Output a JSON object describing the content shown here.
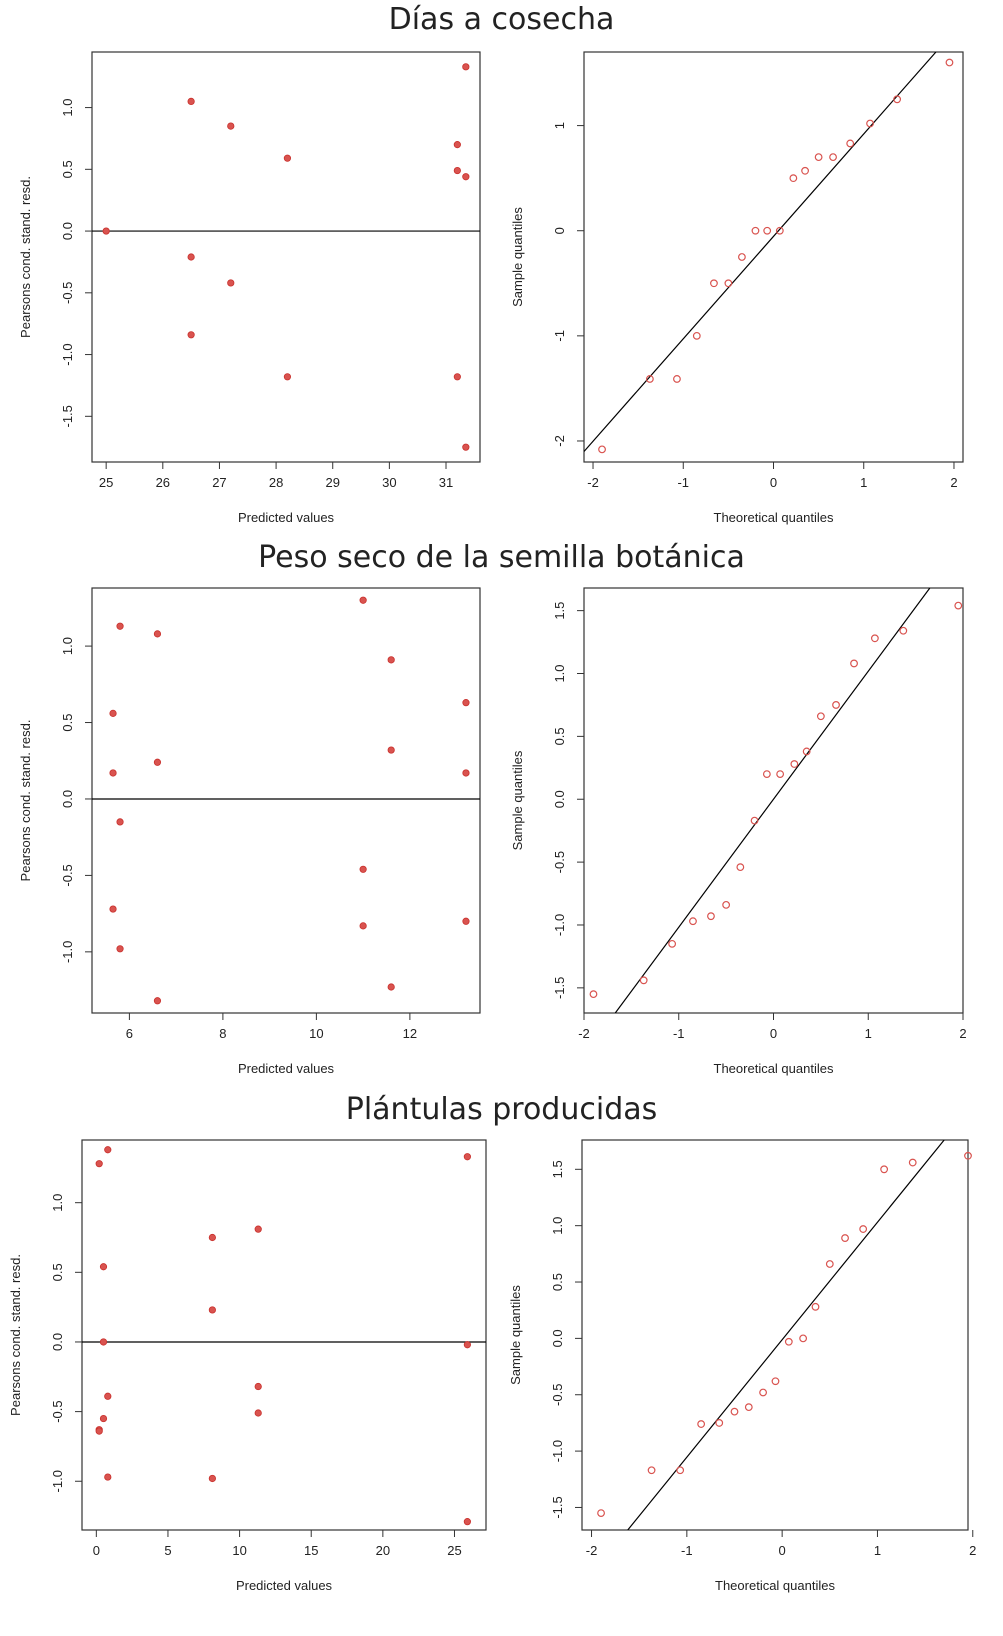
{
  "sections": [
    {
      "title": "Días a cosecha"
    },
    {
      "title": "Peso seco de la semilla botánica"
    },
    {
      "title": "Plántulas producidas"
    }
  ],
  "colors": {
    "point": "#d9534f",
    "line": "#000000",
    "frame": "#333333"
  },
  "chart_data": [
    {
      "type": "scatter",
      "xlabel": "Predicted values",
      "ylabel": "Pearsons cond. stand. resd.",
      "xlim": [
        24.75,
        31.6
      ],
      "ylim": [
        -1.87,
        1.45
      ],
      "xticks": [
        25,
        26,
        27,
        28,
        29,
        30,
        31
      ],
      "yticks": [
        1.0,
        0.5,
        0.0,
        -0.5,
        -1.0,
        -1.5
      ],
      "ytick_labels": [
        "1.0",
        "0.5",
        "0.0",
        "-0.5",
        "-1.0",
        "-1.5"
      ],
      "hline": 0,
      "points": [
        [
          25.0,
          0.0
        ],
        [
          26.5,
          1.05
        ],
        [
          27.2,
          0.85
        ],
        [
          28.2,
          0.59
        ],
        [
          31.2,
          0.7
        ],
        [
          31.35,
          1.33
        ],
        [
          31.2,
          0.49
        ],
        [
          31.35,
          0.44
        ],
        [
          26.5,
          -0.21
        ],
        [
          27.2,
          -0.42
        ],
        [
          26.5,
          -0.84
        ],
        [
          28.2,
          -1.18
        ],
        [
          31.2,
          -1.18
        ],
        [
          31.35,
          -1.75
        ]
      ]
    },
    {
      "type": "scatter",
      "xlabel": "Theoretical quantiles",
      "ylabel": "Sample quantiles",
      "xlim": [
        -2.1,
        2.1
      ],
      "ylim": [
        -2.2,
        1.7
      ],
      "xticks": [
        -2,
        -1,
        0,
        1,
        2
      ],
      "yticks": [
        1,
        0,
        -1,
        -2
      ],
      "ytick_labels": [
        "1",
        "0",
        "-1",
        "-2"
      ],
      "refline": [
        [
          -2.1,
          -2.1
        ],
        [
          1.8,
          1.7
        ]
      ],
      "points": [
        [
          -1.9,
          -2.08
        ],
        [
          -1.37,
          -1.41
        ],
        [
          -1.07,
          -1.41
        ],
        [
          -0.85,
          -1.0
        ],
        [
          -0.66,
          -0.5
        ],
        [
          -0.5,
          -0.5
        ],
        [
          -0.35,
          -0.25
        ],
        [
          -0.2,
          0.0
        ],
        [
          -0.07,
          0.0
        ],
        [
          0.07,
          0.0
        ],
        [
          0.22,
          0.5
        ],
        [
          0.35,
          0.57
        ],
        [
          0.5,
          0.7
        ],
        [
          0.66,
          0.7
        ],
        [
          0.85,
          0.83
        ],
        [
          1.07,
          1.02
        ],
        [
          1.37,
          1.25
        ],
        [
          1.95,
          1.6
        ]
      ]
    },
    {
      "type": "scatter",
      "xlabel": "Predicted values",
      "ylabel": "Pearsons cond. stand. resd.",
      "xlim": [
        5.2,
        13.5
      ],
      "ylim": [
        -1.4,
        1.38
      ],
      "xticks": [
        6,
        8,
        10,
        12
      ],
      "yticks": [
        1.0,
        0.5,
        0.0,
        -0.5,
        -1.0
      ],
      "ytick_labels": [
        "1.0",
        "0.5",
        "0.0",
        "-0.5",
        "-1.0"
      ],
      "hline": 0,
      "points": [
        [
          5.65,
          0.56
        ],
        [
          5.65,
          0.17
        ],
        [
          5.8,
          1.13
        ],
        [
          6.6,
          1.08
        ],
        [
          6.6,
          0.24
        ],
        [
          5.8,
          -0.15
        ],
        [
          5.65,
          -0.72
        ],
        [
          5.8,
          -0.98
        ],
        [
          6.6,
          -1.32
        ],
        [
          11.0,
          1.3
        ],
        [
          11.6,
          0.91
        ],
        [
          11.6,
          0.32
        ],
        [
          13.2,
          0.63
        ],
        [
          13.2,
          0.17
        ],
        [
          11.0,
          -0.46
        ],
        [
          11.0,
          -0.83
        ],
        [
          11.6,
          -1.23
        ],
        [
          13.2,
          -0.8
        ]
      ]
    },
    {
      "type": "scatter",
      "xlabel": "Theoretical quantiles",
      "ylabel": "Sample quantiles",
      "xlim": [
        -2.0,
        2.0
      ],
      "ylim": [
        -1.7,
        1.68
      ],
      "xticks": [
        -2,
        -1,
        0,
        1,
        2
      ],
      "yticks": [
        1.5,
        1.0,
        0.5,
        0.0,
        -0.5,
        -1.0,
        -1.5
      ],
      "ytick_labels": [
        "1.5",
        "1.0",
        "0.5",
        "0.0",
        "-0.5",
        "-1.0",
        "-1.5"
      ],
      "refline": [
        [
          -1.67,
          -1.7
        ],
        [
          1.65,
          1.68
        ]
      ],
      "points": [
        [
          -1.9,
          -1.55
        ],
        [
          -1.37,
          -1.44
        ],
        [
          -1.07,
          -1.15
        ],
        [
          -0.85,
          -0.97
        ],
        [
          -0.66,
          -0.93
        ],
        [
          -0.5,
          -0.84
        ],
        [
          -0.35,
          -0.54
        ],
        [
          -0.2,
          -0.17
        ],
        [
          -0.07,
          0.2
        ],
        [
          0.07,
          0.2
        ],
        [
          0.22,
          0.28
        ],
        [
          0.35,
          0.38
        ],
        [
          0.5,
          0.66
        ],
        [
          0.66,
          0.75
        ],
        [
          0.85,
          1.08
        ],
        [
          1.07,
          1.28
        ],
        [
          1.37,
          1.34
        ],
        [
          1.95,
          1.54
        ]
      ]
    },
    {
      "type": "scatter",
      "xlabel": "Predicted values",
      "ylabel": "Pearsons cond. stand. resd.",
      "xlim": [
        -1.0,
        27.2
      ],
      "ylim": [
        -1.35,
        1.45
      ],
      "xticks": [
        0,
        5,
        10,
        15,
        20,
        25
      ],
      "yticks": [
        1.0,
        0.5,
        0.0,
        -0.5,
        -1.0
      ],
      "ytick_labels": [
        "1.0",
        "0.5",
        "0.0",
        "-0.5",
        "-1.0"
      ],
      "hline": 0,
      "points": [
        [
          0.2,
          1.28
        ],
        [
          0.8,
          1.38
        ],
        [
          0.5,
          0.54
        ],
        [
          0.5,
          0.0
        ],
        [
          0.8,
          -0.39
        ],
        [
          0.5,
          -0.55
        ],
        [
          0.2,
          -0.63
        ],
        [
          0.2,
          -0.64
        ],
        [
          0.8,
          -0.97
        ],
        [
          8.1,
          0.75
        ],
        [
          8.1,
          0.23
        ],
        [
          8.1,
          -0.98
        ],
        [
          11.3,
          0.81
        ],
        [
          11.3,
          -0.32
        ],
        [
          11.3,
          -0.51
        ],
        [
          25.9,
          1.33
        ],
        [
          25.9,
          -0.02
        ],
        [
          25.9,
          -1.29
        ]
      ]
    },
    {
      "type": "scatter",
      "xlabel": "Theoretical quantiles",
      "ylabel": "Sample quantiles",
      "xlim": [
        -2.1,
        1.95
      ],
      "ylim": [
        -1.7,
        1.76
      ],
      "xticks": [
        -2,
        -1,
        0,
        1,
        2
      ],
      "yticks": [
        1.5,
        1.0,
        0.5,
        0.0,
        -0.5,
        -1.0,
        -1.5
      ],
      "ytick_labels": [
        "1.5",
        "1.0",
        "0.5",
        "0.0",
        "-0.5",
        "-1.0",
        "-1.5"
      ],
      "refline": [
        [
          -1.62,
          -1.7
        ],
        [
          1.7,
          1.76
        ]
      ],
      "points": [
        [
          -1.9,
          -1.55
        ],
        [
          -1.37,
          -1.17
        ],
        [
          -1.07,
          -1.17
        ],
        [
          -0.85,
          -0.76
        ],
        [
          -0.66,
          -0.75
        ],
        [
          -0.5,
          -0.65
        ],
        [
          -0.35,
          -0.61
        ],
        [
          -0.2,
          -0.48
        ],
        [
          -0.07,
          -0.38
        ],
        [
          0.07,
          -0.03
        ],
        [
          0.22,
          0.0
        ],
        [
          0.35,
          0.28
        ],
        [
          0.5,
          0.66
        ],
        [
          0.66,
          0.89
        ],
        [
          0.85,
          0.97
        ],
        [
          1.07,
          1.5
        ],
        [
          1.37,
          1.56
        ],
        [
          1.95,
          1.62
        ]
      ]
    }
  ]
}
